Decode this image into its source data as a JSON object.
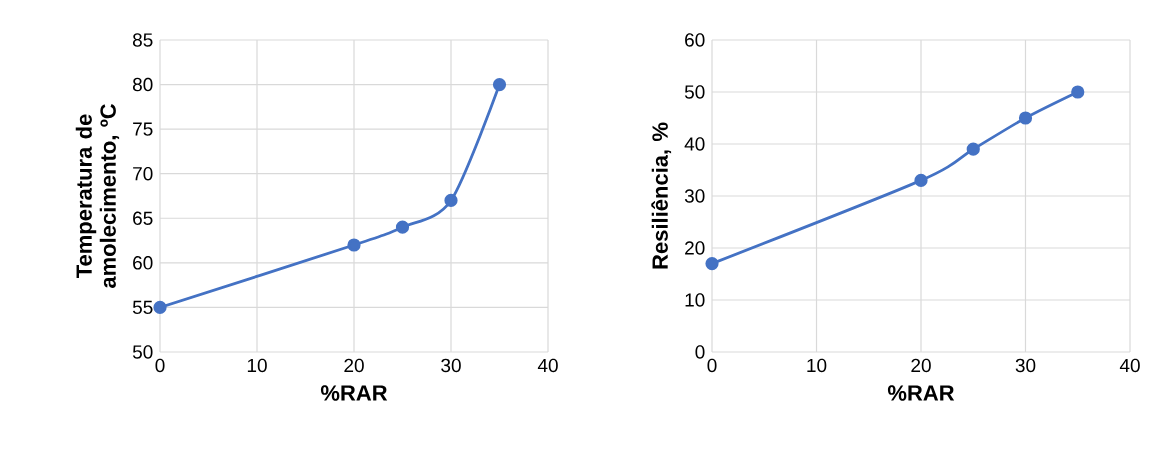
{
  "chart_data": [
    {
      "type": "line",
      "xlabel": "%RAR",
      "ylabel": "Temperatura de amolecimento, ºC",
      "x": [
        0,
        20,
        25,
        30,
        35
      ],
      "series": [
        {
          "color": "#4472c4",
          "values": [
            55,
            62,
            64,
            67,
            80
          ]
        }
      ],
      "xlim": [
        0,
        40
      ],
      "xticks": [
        0,
        10,
        20,
        30,
        40
      ],
      "ylim": [
        50,
        85
      ],
      "yticks": [
        50,
        55,
        60,
        65,
        70,
        75,
        80,
        85
      ],
      "grid": true,
      "marker": "circle",
      "line_style": "solid"
    },
    {
      "type": "line",
      "xlabel": "%RAR",
      "ylabel": "Resiliência, %",
      "x": [
        0,
        20,
        25,
        30,
        35
      ],
      "series": [
        {
          "color": "#4472c4",
          "values": [
            17,
            33,
            39,
            45,
            50
          ]
        }
      ],
      "xlim": [
        0,
        40
      ],
      "xticks": [
        0,
        10,
        20,
        30,
        40
      ],
      "ylim": [
        0,
        60
      ],
      "yticks": [
        0,
        10,
        20,
        30,
        40,
        50,
        60
      ],
      "grid": true,
      "marker": "circle",
      "line_style": "solid"
    }
  ]
}
